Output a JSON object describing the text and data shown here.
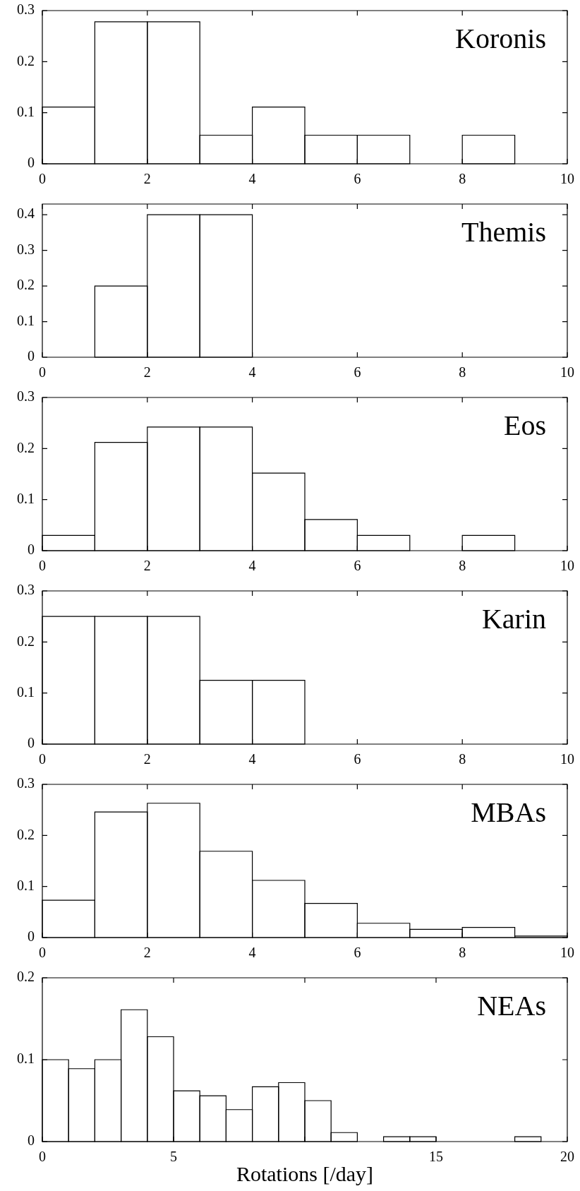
{
  "chart_data": [
    {
      "type": "histogram",
      "title": "Koronis",
      "bins": [
        0,
        1,
        2,
        3,
        4,
        5,
        6,
        7,
        8,
        9,
        10
      ],
      "values": [
        0.111,
        0.278,
        0.278,
        0.056,
        0.111,
        0.056,
        0.056,
        0,
        0.056,
        0
      ],
      "color": "#000000",
      "xlim": [
        0,
        10
      ],
      "xticks": [
        0,
        2,
        4,
        6,
        8,
        10
      ],
      "ylim": [
        0,
        0.3
      ],
      "yticks": [
        0,
        0.1,
        0.2,
        0.3
      ]
    },
    {
      "type": "histogram",
      "title": "Themis",
      "bins": [
        0,
        1,
        2,
        3,
        4,
        5,
        6,
        7,
        8,
        9,
        10
      ],
      "values": [
        0,
        0.2,
        0.4,
        0.4,
        0,
        0,
        0,
        0,
        0,
        0
      ],
      "color": "#000000",
      "xlim": [
        0,
        10
      ],
      "xticks": [
        0,
        2,
        4,
        6,
        8,
        10
      ],
      "ylim": [
        0,
        0.43
      ],
      "yticks": [
        0,
        0.1,
        0.2,
        0.3,
        0.4
      ]
    },
    {
      "type": "histogram",
      "title": "Eos",
      "bins": [
        0,
        1,
        2,
        3,
        4,
        5,
        6,
        7,
        8,
        9,
        10
      ],
      "values": [
        0.03,
        0.212,
        0.242,
        0.242,
        0.152,
        0.061,
        0.03,
        0,
        0.03,
        0
      ],
      "color": "#000000",
      "xlim": [
        0,
        10
      ],
      "xticks": [
        0,
        2,
        4,
        6,
        8,
        10
      ],
      "ylim": [
        0,
        0.3
      ],
      "yticks": [
        0,
        0.1,
        0.2,
        0.3
      ]
    },
    {
      "type": "histogram",
      "title": "Karin",
      "bins": [
        0,
        1,
        2,
        3,
        4,
        5,
        6,
        7,
        8,
        9,
        10
      ],
      "values": [
        0.25,
        0.25,
        0.25,
        0.125,
        0.125,
        0,
        0,
        0,
        0,
        0
      ],
      "color": "#000000",
      "xlim": [
        0,
        10
      ],
      "xticks": [
        0,
        2,
        4,
        6,
        8,
        10
      ],
      "ylim": [
        0,
        0.3
      ],
      "yticks": [
        0,
        0.1,
        0.2,
        0.3
      ]
    },
    {
      "type": "histogram",
      "title": "MBAs",
      "bins": [
        0,
        1,
        2,
        3,
        4,
        5,
        6,
        7,
        8,
        9,
        10
      ],
      "values": [
        0.073,
        0.246,
        0.263,
        0.169,
        0.112,
        0.067,
        0.028,
        0.016,
        0.02,
        0.003
      ],
      "color": "#000000",
      "xlim": [
        0,
        10
      ],
      "xticks": [
        0,
        2,
        4,
        6,
        8,
        10
      ],
      "ylim": [
        0,
        0.3
      ],
      "yticks": [
        0,
        0.1,
        0.2,
        0.3
      ]
    },
    {
      "type": "histogram",
      "title": "NEAs",
      "xlabel": "Rotations [/day]",
      "bins": [
        0,
        1,
        2,
        3,
        4,
        5,
        6,
        7,
        8,
        9,
        10,
        11,
        12,
        13,
        14,
        15,
        16,
        17,
        18,
        19,
        20
      ],
      "values": [
        0.1,
        0.089,
        0.1,
        0.161,
        0.128,
        0.062,
        0.056,
        0.039,
        0.067,
        0.072,
        0.05,
        0.011,
        0,
        0.006,
        0.006,
        0,
        0,
        0,
        0.006,
        0
      ],
      "color": "#000000",
      "xlim": [
        0,
        20
      ],
      "xticks": [
        0,
        5,
        {
          "value": 10,
          "label": null
        },
        15,
        20
      ],
      "ylim": [
        0,
        0.2
      ],
      "yticks": [
        0,
        0.1,
        0.2
      ]
    }
  ]
}
